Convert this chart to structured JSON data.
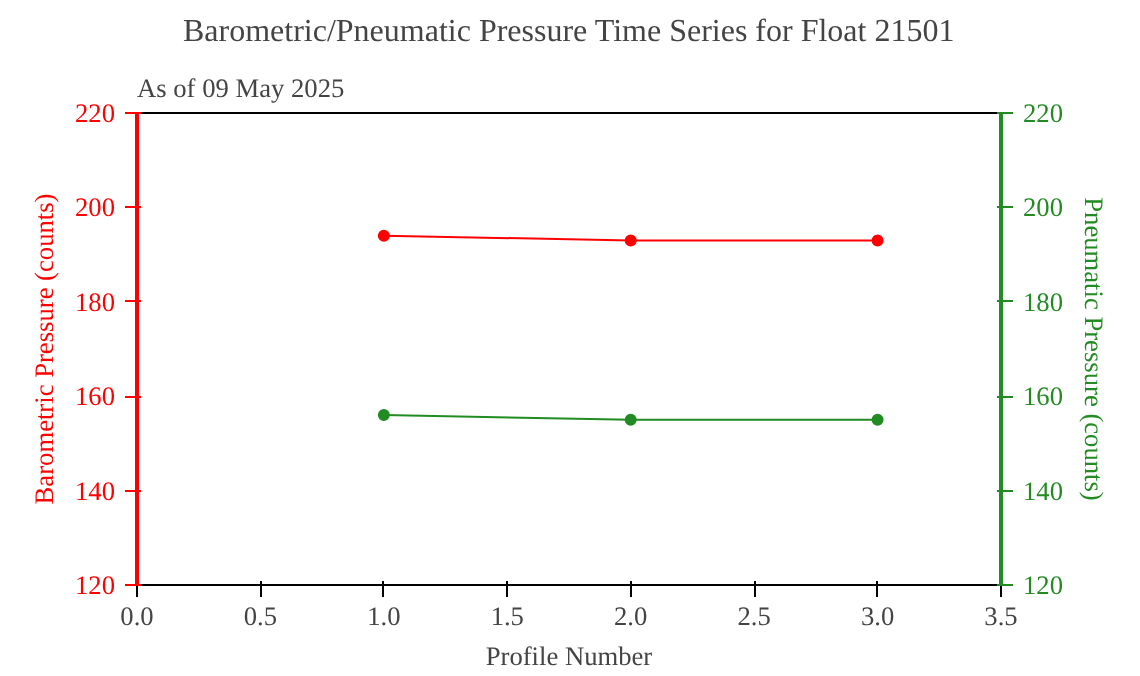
{
  "chart_data": {
    "type": "line",
    "title": "Barometric/Pneumatic Pressure Time Series for Float 21501",
    "subtitle": "As of 09 May 2025",
    "xlabel": "Profile Number",
    "ylabel": "Barometric Pressure (counts)",
    "y2label": "Pneumatic Pressure (counts)",
    "x": [
      1,
      2,
      3
    ],
    "series": [
      {
        "color": "#ff0000",
        "values": [
          194,
          193,
          193
        ]
      },
      {
        "color": "#228b22",
        "values": [
          156,
          155,
          155
        ],
        "axis": "y2"
      }
    ],
    "xlim": [
      0,
      3.5
    ],
    "xticks": [
      {
        "value": 0,
        "label": "0.0"
      },
      {
        "value": 0.5,
        "label": "0.5"
      },
      {
        "value": 1,
        "label": "1.0"
      },
      {
        "value": 1.5,
        "label": "1.5"
      },
      {
        "value": 2,
        "label": "2.0"
      },
      {
        "value": 2.5,
        "label": "2.5"
      },
      {
        "value": 3,
        "label": "3.0"
      },
      {
        "value": 3.5,
        "label": "3.5"
      }
    ],
    "ylim": [
      120,
      220
    ],
    "yticks": [
      120,
      140,
      160,
      180,
      200,
      220
    ],
    "y2lim": [
      120,
      220
    ],
    "y2ticks": [
      120,
      140,
      160,
      180,
      200,
      220
    ],
    "marker": "circle",
    "grid": false
  }
}
